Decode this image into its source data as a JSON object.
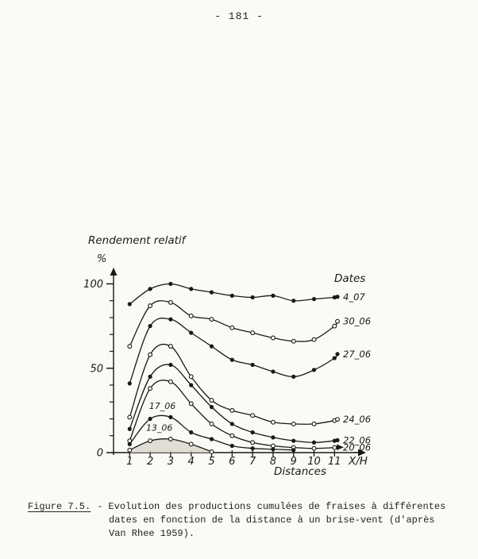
{
  "page": {
    "number": "- 181 -"
  },
  "chart": {
    "y_axis_title": "Rendement relatif",
    "y_axis_unit": "%",
    "x_axis_label": "X/H",
    "x_axis_sublabel": "Distances",
    "legend_title": "Dates",
    "ink_color": "#1b1916",
    "paper_color": "#fafaf6",
    "area_fill_color": "#d9d6cc"
  },
  "chart_data": {
    "type": "line",
    "title": "Rendement relatif (%) en fonction de la distance X/H",
    "xlabel": "X/H (Distances)",
    "ylabel": "Rendement relatif %",
    "x": [
      1,
      2,
      3,
      4,
      5,
      6,
      7,
      8,
      9,
      10,
      11
    ],
    "xticks": [
      "1",
      "2",
      "3",
      "4",
      "5",
      "6",
      "7",
      "8",
      "9",
      "10",
      "11"
    ],
    "ylim": [
      0,
      100
    ],
    "yticks": [
      "0",
      "50",
      "100"
    ],
    "y_minor_tick_step": 10,
    "grid": false,
    "legend_position": "right",
    "series": [
      {
        "name": "4_07",
        "marker": "filled",
        "label_position": "right",
        "values": [
          88,
          97,
          100,
          97,
          95,
          93,
          92,
          93,
          90,
          91,
          92
        ]
      },
      {
        "name": "30_06",
        "marker": "open",
        "label_position": "right",
        "values": [
          63,
          87,
          89,
          81,
          79,
          74,
          71,
          68,
          66,
          67,
          75
        ]
      },
      {
        "name": "27_06",
        "marker": "filled",
        "label_position": "right",
        "values": [
          41,
          75,
          79,
          71,
          63,
          55,
          52,
          48,
          45,
          49,
          56
        ]
      },
      {
        "name": "24_06",
        "marker": "open",
        "label_position": "right",
        "values": [
          21,
          58,
          63,
          45,
          31,
          25,
          22,
          18,
          17,
          17,
          19
        ]
      },
      {
        "name": "22_06",
        "marker": "filled",
        "label_position": "right",
        "values": [
          14,
          45,
          52,
          40,
          27,
          17,
          12,
          9,
          7,
          6,
          7
        ]
      },
      {
        "name": "20_06",
        "marker": "open",
        "label_position": "right",
        "arrow_end": true,
        "values": [
          7,
          38,
          42,
          29,
          17,
          10,
          6,
          4,
          3,
          2.5,
          3
        ]
      },
      {
        "name": "17_06",
        "marker": "filled",
        "label_position": "inside",
        "label_at": [
          1.95,
          25
        ],
        "values": [
          5,
          20,
          21,
          12,
          8,
          4,
          2.5,
          2,
          1.5
        ]
      },
      {
        "name": "13_06",
        "marker": "open",
        "label_position": "inside",
        "label_at": [
          1.8,
          12
        ],
        "area_fill": true,
        "values": [
          1.5,
          7,
          8,
          5,
          0.5
        ]
      }
    ]
  },
  "caption": {
    "label": "Figure 7.5.",
    "separator": "-",
    "line1": "Evolution des productions cumulées de fraises à différentes",
    "line2": "dates en fonction de la distance à un brise-vent (d'après",
    "line3": "Van Rhee 1959)."
  }
}
